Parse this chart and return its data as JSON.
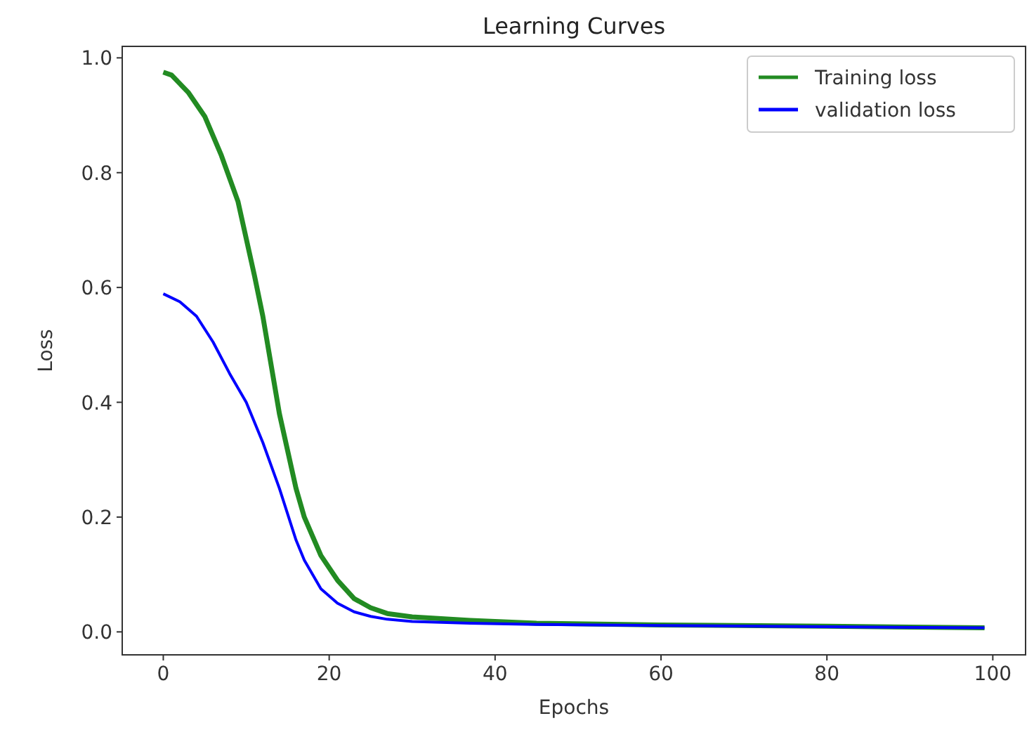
{
  "chart_data": {
    "type": "line",
    "title": "Learning Curves",
    "xlabel": "Epochs",
    "ylabel": "Loss",
    "xlim": [
      -4.95,
      103.95
    ],
    "xticks": [
      0,
      20,
      40,
      60,
      80,
      100
    ],
    "ylim": [
      -0.04,
      1.02
    ],
    "yticks": [
      {
        "value": 0,
        "label": "0.0"
      },
      {
        "value": 0.2,
        "label": "0.2"
      },
      {
        "value": 0.4,
        "label": "0.4"
      },
      {
        "value": 0.6,
        "label": "0.6"
      },
      {
        "value": 0.8,
        "label": "0.8"
      },
      {
        "value": 1,
        "label": "1.0"
      }
    ],
    "legend": "top right",
    "grid": false,
    "series": [
      {
        "name": "Training loss",
        "color": "#228b22",
        "x": [
          0,
          1,
          3,
          5,
          7,
          9,
          11,
          12,
          14,
          16,
          17,
          19,
          21,
          23,
          25,
          27,
          30,
          37,
          45,
          60,
          80,
          99
        ],
        "values": [
          0.975,
          0.97,
          0.94,
          0.898,
          0.83,
          0.75,
          0.62,
          0.55,
          0.38,
          0.25,
          0.2,
          0.133,
          0.09,
          0.058,
          0.042,
          0.032,
          0.026,
          0.02,
          0.015,
          0.012,
          0.01,
          0.007
        ]
      },
      {
        "name": "validation loss",
        "color": "#0000ff",
        "x": [
          0,
          2,
          4,
          6,
          8,
          10,
          12,
          14,
          16,
          17,
          19,
          21,
          23,
          25,
          27,
          30,
          37,
          45,
          60,
          80,
          99
        ],
        "values": [
          0.589,
          0.575,
          0.55,
          0.505,
          0.45,
          0.4,
          0.33,
          0.25,
          0.16,
          0.125,
          0.075,
          0.05,
          0.035,
          0.027,
          0.022,
          0.018,
          0.015,
          0.013,
          0.011,
          0.009,
          0.007
        ]
      }
    ]
  }
}
